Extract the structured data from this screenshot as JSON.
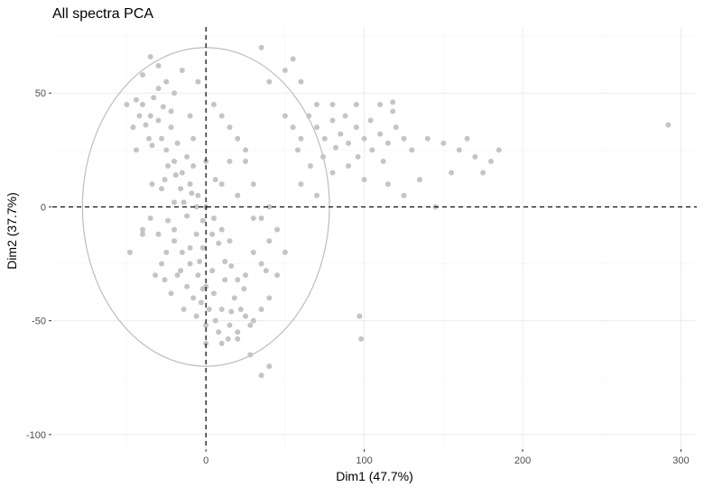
{
  "chart_data": {
    "type": "scatter",
    "title": "All spectra PCA",
    "xlabel": "Dim1 (47.7%)",
    "ylabel": "Dim2 (37.7%)",
    "xlim": [
      -97,
      310
    ],
    "ylim": [
      -106,
      79
    ],
    "x_ticks": [
      0,
      100,
      200,
      300
    ],
    "y_ticks": [
      -100,
      -50,
      0,
      50
    ],
    "x_tick_labels": [
      "0",
      "100",
      "200",
      "300"
    ],
    "y_tick_labels": [
      "-100",
      "-50",
      "0",
      "50"
    ],
    "grid": true,
    "legend": "none",
    "reference_lines": {
      "x": 0,
      "y": 0
    },
    "ellipse": {
      "cx": 0,
      "cy": 0,
      "rx": 78,
      "ry": 70
    },
    "point_color": "#c4c4c4",
    "points": [
      [
        -40,
        45
      ],
      [
        -35,
        40
      ],
      [
        -30,
        38
      ],
      [
        -28,
        30
      ],
      [
        -25,
        25
      ],
      [
        -20,
        20
      ],
      [
        -15,
        15
      ],
      [
        -10,
        10
      ],
      [
        -5,
        5
      ],
      [
        0,
        0
      ],
      [
        5,
        -5
      ],
      [
        10,
        -10
      ],
      [
        15,
        -15
      ],
      [
        -33,
        48
      ],
      [
        -38,
        36
      ],
      [
        -27,
        44
      ],
      [
        -22,
        35
      ],
      [
        -18,
        28
      ],
      [
        -12,
        22
      ],
      [
        -8,
        18
      ],
      [
        -30,
        52
      ],
      [
        -42,
        40
      ],
      [
        -36,
        30
      ],
      [
        -24,
        18
      ],
      [
        -16,
        8
      ],
      [
        -6,
        0
      ],
      [
        4,
        -12
      ],
      [
        12,
        -24
      ],
      [
        20,
        -32
      ],
      [
        -22,
        42
      ],
      [
        -26,
        12
      ],
      [
        -14,
        2
      ],
      [
        -2,
        -6
      ],
      [
        8,
        -16
      ],
      [
        16,
        -26
      ],
      [
        24,
        -36
      ],
      [
        -44,
        47
      ],
      [
        -34,
        27
      ],
      [
        -19,
        14
      ],
      [
        -9,
        6
      ],
      [
        -20,
        -10
      ],
      [
        -15,
        -20
      ],
      [
        -10,
        -25
      ],
      [
        -5,
        -30
      ],
      [
        0,
        -35
      ],
      [
        -18,
        -30
      ],
      [
        -8,
        -40
      ],
      [
        2,
        -45
      ],
      [
        6,
        -50
      ],
      [
        -25,
        -20
      ],
      [
        -12,
        -35
      ],
      [
        -3,
        -42
      ],
      [
        5,
        -38
      ],
      [
        10,
        -45
      ],
      [
        15,
        -52
      ],
      [
        20,
        -55
      ],
      [
        25,
        -48
      ],
      [
        18,
        -40
      ],
      [
        12,
        -32
      ],
      [
        -28,
        -25
      ],
      [
        -22,
        -38
      ],
      [
        -14,
        -45
      ],
      [
        -6,
        -48
      ],
      [
        0,
        -52
      ],
      [
        8,
        -55
      ],
      [
        14,
        -58
      ],
      [
        -20,
        -15
      ],
      [
        -30,
        -12
      ],
      [
        -16,
        -28
      ],
      [
        -4,
        -24
      ],
      [
        -40,
        -10
      ],
      [
        -35,
        -5
      ],
      [
        -26,
        -32
      ],
      [
        -10,
        -18
      ],
      [
        22,
        -45
      ],
      [
        28,
        -52
      ],
      [
        16,
        -46
      ],
      [
        4,
        -28
      ],
      [
        -2,
        -36
      ],
      [
        -32,
        -30
      ],
      [
        0,
        -60
      ],
      [
        10,
        -60
      ],
      [
        20,
        -58
      ],
      [
        30,
        -50
      ],
      [
        35,
        -45
      ],
      [
        25,
        -30
      ],
      [
        30,
        -20
      ],
      [
        40,
        -15
      ],
      [
        35,
        -5
      ],
      [
        20,
        5
      ],
      [
        10,
        10
      ],
      [
        15,
        20
      ],
      [
        25,
        25
      ],
      [
        30,
        10
      ],
      [
        40,
        0
      ],
      [
        45,
        -10
      ],
      [
        50,
        -20
      ],
      [
        45,
        -30
      ],
      [
        40,
        -40
      ],
      [
        38,
        -28
      ],
      [
        55,
        35
      ],
      [
        60,
        30
      ],
      [
        65,
        40
      ],
      [
        70,
        35
      ],
      [
        75,
        30
      ],
      [
        80,
        38
      ],
      [
        85,
        32
      ],
      [
        90,
        28
      ],
      [
        95,
        35
      ],
      [
        100,
        30
      ],
      [
        105,
        25
      ],
      [
        110,
        32
      ],
      [
        115,
        28
      ],
      [
        120,
        35
      ],
      [
        125,
        30
      ],
      [
        130,
        25
      ],
      [
        140,
        30
      ],
      [
        150,
        28
      ],
      [
        160,
        25
      ],
      [
        170,
        22
      ],
      [
        50,
        40
      ],
      [
        58,
        25
      ],
      [
        66,
        18
      ],
      [
        74,
        22
      ],
      [
        82,
        26
      ],
      [
        88,
        40
      ],
      [
        96,
        22
      ],
      [
        104,
        38
      ],
      [
        112,
        20
      ],
      [
        118,
        42
      ],
      [
        60,
        10
      ],
      [
        70,
        5
      ],
      [
        80,
        15
      ],
      [
        90,
        18
      ],
      [
        100,
        12
      ],
      [
        115,
        10
      ],
      [
        125,
        5
      ],
      [
        135,
        12
      ],
      [
        145,
        0
      ],
      [
        155,
        15
      ],
      [
        40,
        55
      ],
      [
        50,
        60
      ],
      [
        60,
        55
      ],
      [
        70,
        45
      ],
      [
        80,
        45
      ],
      [
        95,
        45
      ],
      [
        110,
        45
      ],
      [
        118,
        46
      ],
      [
        35,
        70
      ],
      [
        55,
        65
      ],
      [
        175,
        15
      ],
      [
        180,
        20
      ],
      [
        185,
        25
      ],
      [
        165,
        30
      ],
      [
        292,
        36
      ],
      [
        97,
        -48
      ],
      [
        98,
        -58
      ],
      [
        40,
        -70
      ],
      [
        35,
        -74
      ],
      [
        28,
        -65
      ],
      [
        -40,
        -12
      ],
      [
        -48,
        -20
      ],
      [
        -46,
        35
      ],
      [
        -50,
        45
      ],
      [
        -44,
        25
      ],
      [
        -30,
        62
      ],
      [
        -35,
        66
      ],
      [
        -25,
        55
      ],
      [
        -40,
        58
      ],
      [
        -20,
        50
      ],
      [
        -15,
        60
      ],
      [
        -5,
        55
      ],
      [
        5,
        45
      ],
      [
        10,
        40
      ],
      [
        15,
        35
      ],
      [
        20,
        30
      ],
      [
        25,
        20
      ],
      [
        30,
        -5
      ],
      [
        35,
        -25
      ],
      [
        -10,
        40
      ],
      [
        -12,
        -4
      ],
      [
        -20,
        2
      ],
      [
        -28,
        8
      ],
      [
        -6,
        -12
      ],
      [
        -24,
        -6
      ],
      [
        -34,
        10
      ],
      [
        -8,
        30
      ],
      [
        0,
        20
      ],
      [
        6,
        12
      ],
      [
        -2,
        -18
      ]
    ]
  }
}
